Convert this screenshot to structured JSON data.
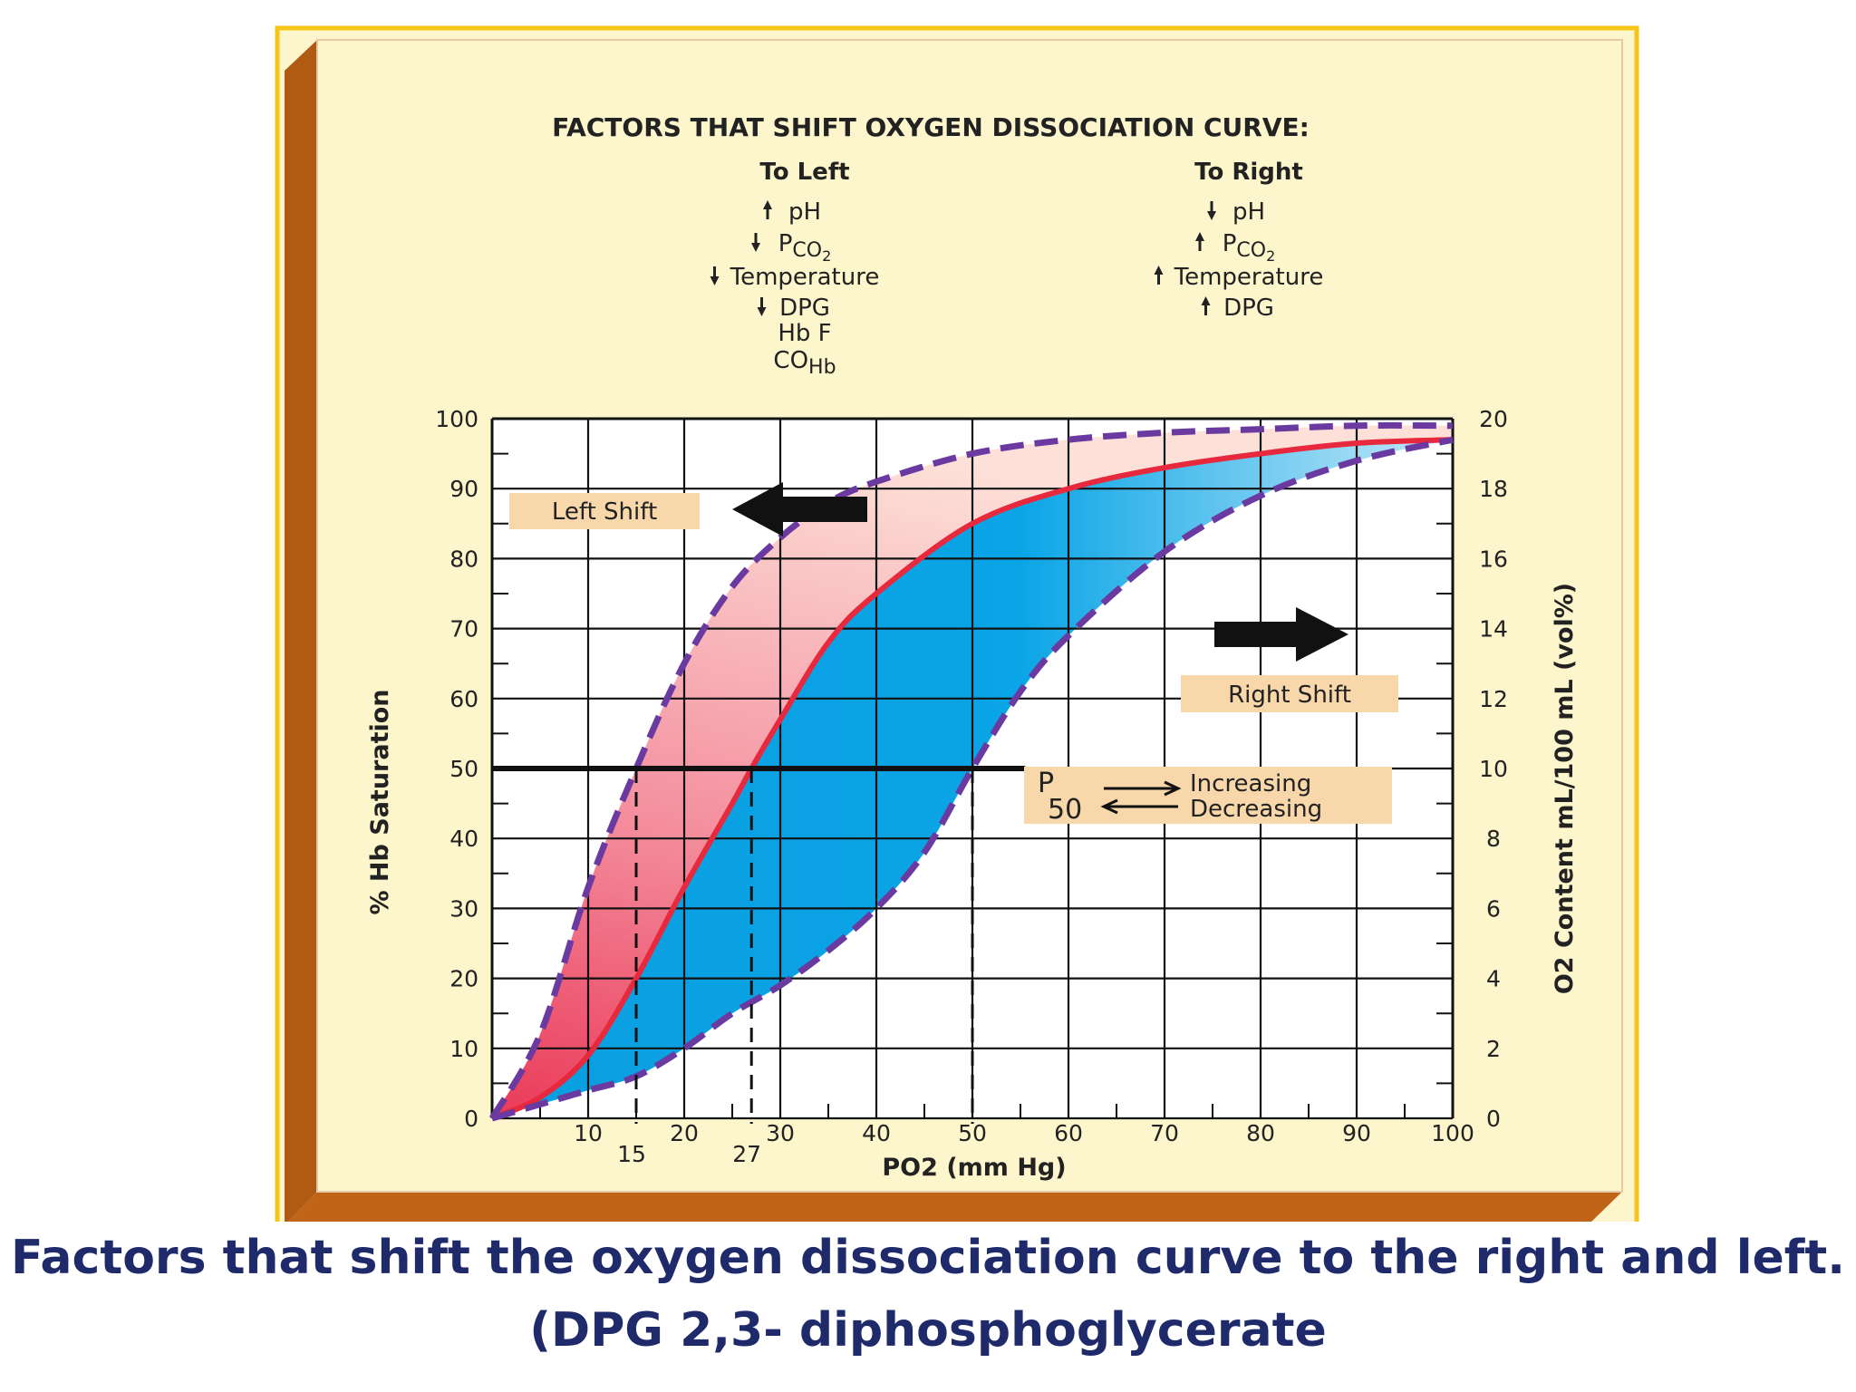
{
  "chart_data": {
    "type": "line",
    "title": "FACTORS THAT SHIFT OXYGEN DISSOCIATION CURVE:",
    "factors": {
      "left": {
        "heading": "To Left",
        "items": [
          {
            "arrow": "up",
            "label": "pH"
          },
          {
            "arrow": "down",
            "label": "PCO2"
          },
          {
            "arrow": "down",
            "label": "Temperature"
          },
          {
            "arrow": "down",
            "label": "DPG"
          },
          {
            "arrow": "",
            "label": "Hb F"
          },
          {
            "arrow": "",
            "label": "COHb"
          }
        ]
      },
      "right": {
        "heading": "To Right",
        "items": [
          {
            "arrow": "down",
            "label": "pH"
          },
          {
            "arrow": "up",
            "label": "PCO2"
          },
          {
            "arrow": "up",
            "label": "Temperature"
          },
          {
            "arrow": "up",
            "label": "DPG"
          }
        ]
      }
    },
    "xlabel": "PO2 (mm Hg)",
    "ylabel": "% Hb Saturation",
    "y2label": "O2 Content mL/100 mL (vol%)",
    "xlim": [
      0,
      100
    ],
    "ylim": [
      0,
      100
    ],
    "y2lim": [
      0,
      20
    ],
    "xticks": [
      "10",
      "20",
      "30",
      "40",
      "50",
      "60",
      "70",
      "80",
      "90",
      "100"
    ],
    "yticks": [
      "0",
      "10",
      "20",
      "30",
      "40",
      "50",
      "60",
      "70",
      "80",
      "90",
      "100"
    ],
    "y2ticks": [
      "0",
      "2",
      "4",
      "6",
      "8",
      "10",
      "12",
      "14",
      "16",
      "18",
      "20"
    ],
    "p50_markers": [
      "15",
      "27"
    ],
    "grid": true,
    "series": [
      {
        "key": "left",
        "style": "dashed",
        "color": "#6a3aa0",
        "x": [
          0,
          5,
          10,
          15,
          20,
          25,
          30,
          35,
          40,
          50,
          60,
          70,
          80,
          90,
          100
        ],
        "y": [
          0,
          12,
          33,
          50,
          65,
          76,
          83,
          88,
          91,
          95,
          97,
          98,
          98.5,
          99,
          99
        ]
      },
      {
        "key": "normal",
        "style": "solid",
        "color": "#e8283c",
        "x": [
          0,
          5,
          10,
          15,
          20,
          25,
          27,
          30,
          35,
          40,
          50,
          60,
          70,
          80,
          90,
          100
        ],
        "y": [
          0,
          3,
          9,
          20,
          33,
          45,
          50,
          57,
          68,
          75,
          85,
          90,
          93,
          95,
          96.5,
          97
        ]
      },
      {
        "key": "right",
        "style": "dashed",
        "color": "#6a3aa0",
        "x": [
          0,
          5,
          10,
          15,
          20,
          25,
          30,
          35,
          40,
          45,
          50,
          55,
          60,
          70,
          80,
          90,
          100
        ],
        "y": [
          0,
          2,
          4,
          6,
          10,
          15,
          19,
          24,
          30,
          38,
          50,
          61,
          69,
          81,
          89,
          94,
          97
        ]
      }
    ],
    "annotations": {
      "left_shift": "Left Shift",
      "right_shift": "Right Shift",
      "p50_p": "P",
      "p50_num": "50",
      "increasing": "Increasing",
      "decreasing": "Decreasing"
    }
  },
  "caption": {
    "line1": "Factors that shift the oxygen dissociation curve to the right and left.",
    "line2": "(DPG  2,3- diphosphoglycerate"
  },
  "colors": {
    "frame_border": "#f5c518",
    "panel": "#fdf5cc",
    "bevel": "#b05a14",
    "blue_fill": "#0aa3e2",
    "pink_fill": "#f28a9a",
    "label_box": "#f8d7aa",
    "caption": "#1f2a6b"
  }
}
